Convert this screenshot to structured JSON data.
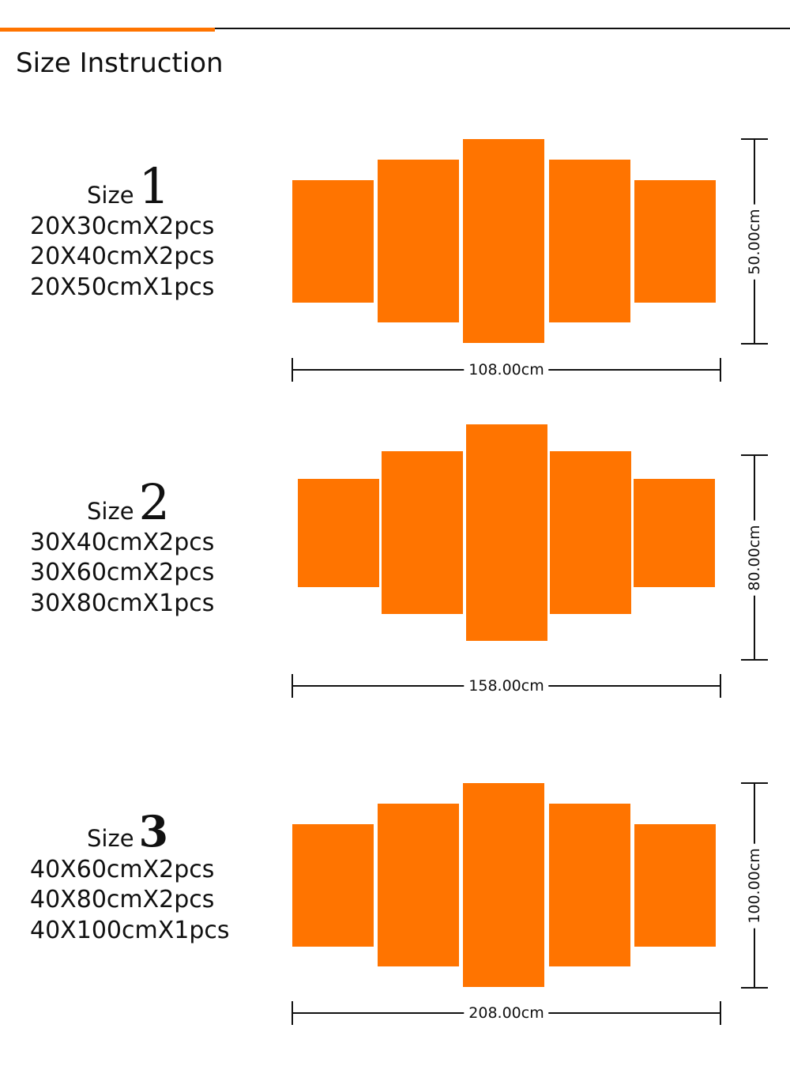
{
  "page": {
    "title": "Size Instruction",
    "accent_color": "#ff7400",
    "panel_color": "#ff7400"
  },
  "sizes": [
    {
      "label": "Size",
      "number": "1",
      "specs": [
        "20X30cmX2pcs",
        "20X40cmX2pcs",
        "20X50cmX1pcs"
      ],
      "width_label": "108.00cm",
      "height_label": "50.00cm"
    },
    {
      "label": "Size",
      "number": "2",
      "specs": [
        "30X40cmX2pcs",
        "30X60cmX2pcs",
        "30X80cmX1pcs"
      ],
      "width_label": "158.00cm",
      "height_label": "80.00cm"
    },
    {
      "label": "Size",
      "number": "3",
      "specs": [
        "40X60cmX2pcs",
        "40X80cmX2pcs",
        "40X100cmX1pcs"
      ],
      "width_label": "208.00cm",
      "height_label": "100.00cm"
    }
  ]
}
